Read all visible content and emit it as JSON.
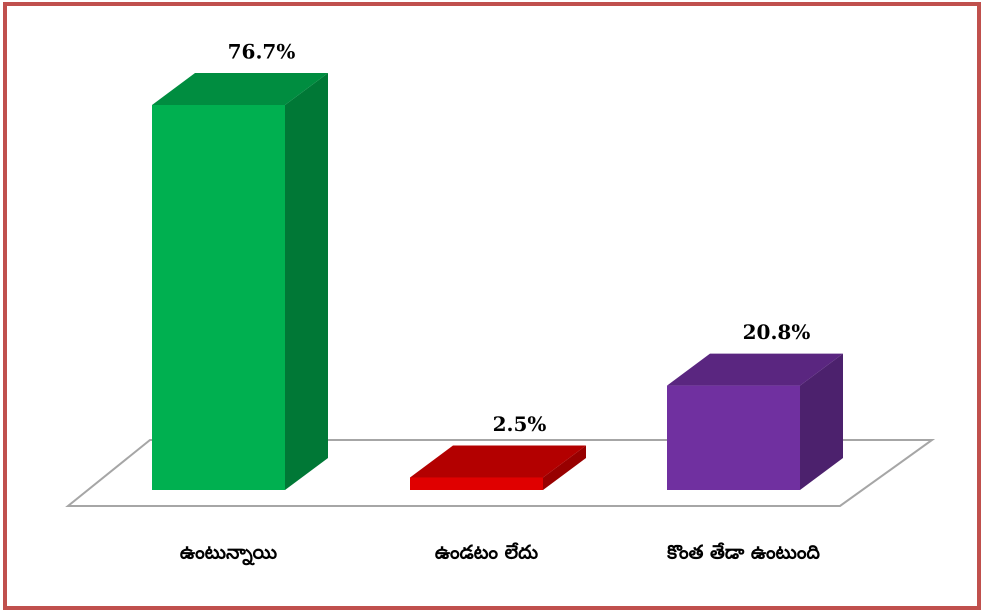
{
  "chart_data": {
    "type": "bar3d",
    "categories": [
      "ఉంటున్నాయి",
      "ఉండటం లేదు",
      "కొంత తేడా ఉంటుంది"
    ],
    "values": [
      76.7,
      2.5,
      20.8
    ],
    "value_labels": [
      "76.7%",
      "2.5%",
      "20.8%"
    ],
    "colors": [
      "#00b050",
      "#e00000",
      "#7030a0"
    ]
  }
}
